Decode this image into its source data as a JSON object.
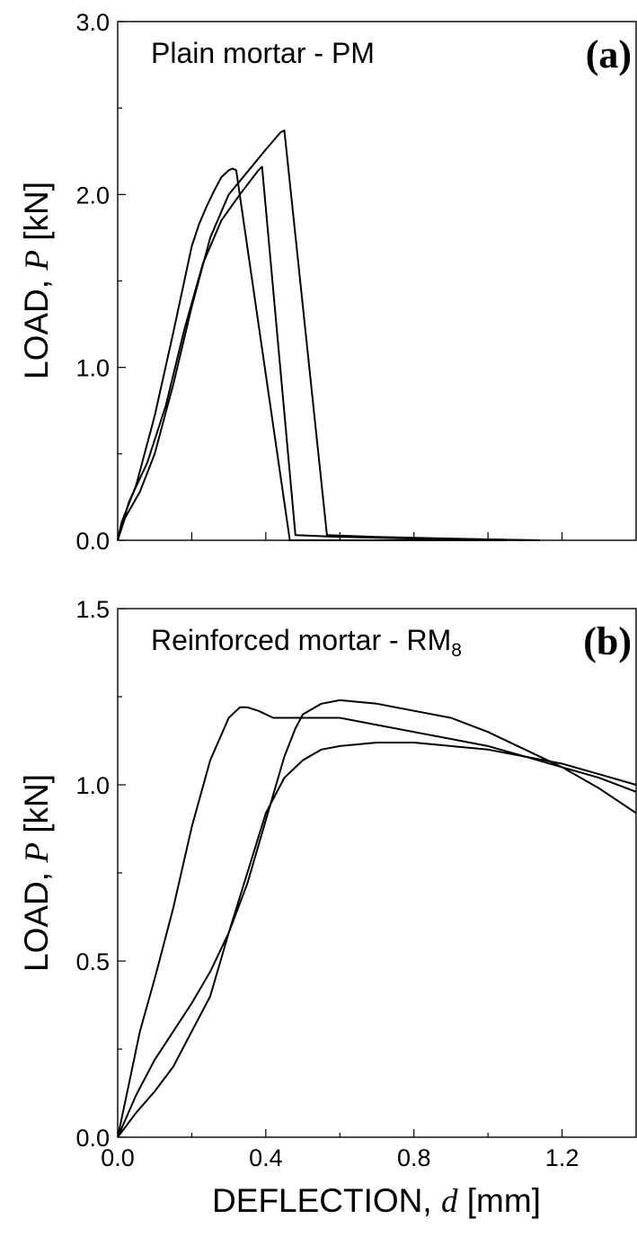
{
  "chart_data": [
    {
      "type": "line",
      "panel_tag": "(a)",
      "label": "Plain mortar - PM",
      "ylabel": "LOAD, P [kN]",
      "ylabel_prefix": "LOAD, ",
      "ylabel_var": "P",
      "ylabel_unit": " [kN]",
      "xlabel": "",
      "xlim": [
        0,
        1.4
      ],
      "ylim": [
        0,
        3.0
      ],
      "yticks": [
        0.0,
        1.0,
        2.0,
        3.0
      ],
      "yticklabels": [
        "0.0",
        "1.0",
        "2.0",
        "3.0"
      ],
      "yminor": [
        0.5,
        1.5,
        2.5
      ],
      "xticks": [
        0.0,
        0.2,
        0.4,
        0.6,
        0.8,
        1.0,
        1.2
      ],
      "grid": false,
      "series": [
        {
          "x": [
            0,
            0.01,
            0.05,
            0.1,
            0.15,
            0.2,
            0.22,
            0.24,
            0.26,
            0.28,
            0.3,
            0.31,
            0.32,
            0.465,
            0.6,
            0.8,
            1.05
          ],
          "y": [
            0,
            0.1,
            0.32,
            0.72,
            1.2,
            1.7,
            1.83,
            1.93,
            2.02,
            2.1,
            2.14,
            2.15,
            2.14,
            0.0,
            0.0,
            0.0,
            0.0
          ]
        },
        {
          "x": [
            0,
            0.03,
            0.08,
            0.13,
            0.18,
            0.23,
            0.28,
            0.33,
            0.38,
            0.39,
            0.48,
            0.6,
            0.8,
            1.0,
            1.14
          ],
          "y": [
            0,
            0.22,
            0.45,
            0.78,
            1.22,
            1.6,
            1.85,
            2.0,
            2.14,
            2.16,
            0.03,
            0.02,
            0.01,
            0.005,
            0.0
          ]
        },
        {
          "x": [
            0,
            0.02,
            0.06,
            0.1,
            0.15,
            0.2,
            0.25,
            0.3,
            0.35,
            0.4,
            0.44,
            0.45,
            0.565,
            0.7,
            0.9,
            1.1
          ],
          "y": [
            0,
            0.13,
            0.28,
            0.5,
            0.9,
            1.35,
            1.75,
            2.0,
            2.13,
            2.26,
            2.36,
            2.37,
            0.03,
            0.02,
            0.01,
            0.0
          ]
        }
      ]
    },
    {
      "type": "line",
      "panel_tag": "(b)",
      "label": "Reinforced mortar - RM",
      "label_sub": "8",
      "ylabel": "LOAD, P [kN]",
      "ylabel_prefix": "LOAD, ",
      "ylabel_var": "P",
      "ylabel_unit": " [kN]",
      "xlabel": "DEFLECTION, d [mm]",
      "xlabel_prefix": "DEFLECTION, ",
      "xlabel_var": "d",
      "xlabel_unit": " [mm]",
      "xlim": [
        0,
        1.4
      ],
      "ylim": [
        0,
        1.5
      ],
      "yticks": [
        0.0,
        0.5,
        1.0,
        1.5
      ],
      "yticklabels": [
        "0.0",
        "0.5",
        "1.0",
        "1.5"
      ],
      "yminor": [
        0.25,
        0.75,
        1.25
      ],
      "xticks": [
        0.0,
        0.4,
        0.8,
        1.2
      ],
      "xticklabels": [
        "0.0",
        "0.4",
        "0.8",
        "1.2"
      ],
      "xminor": [
        0.2,
        0.6,
        1.0
      ],
      "grid": false,
      "series": [
        {
          "x": [
            0,
            0.03,
            0.06,
            0.1,
            0.15,
            0.2,
            0.25,
            0.3,
            0.33,
            0.35,
            0.38,
            0.42,
            0.5,
            0.6,
            0.7,
            0.8,
            0.9,
            1.0,
            1.1,
            1.2,
            1.3,
            1.4
          ],
          "y": [
            0,
            0.15,
            0.3,
            0.45,
            0.65,
            0.88,
            1.07,
            1.19,
            1.22,
            1.22,
            1.21,
            1.19,
            1.19,
            1.19,
            1.17,
            1.15,
            1.13,
            1.11,
            1.08,
            1.05,
            1.02,
            0.98
          ]
        },
        {
          "x": [
            0,
            0.05,
            0.1,
            0.15,
            0.2,
            0.25,
            0.3,
            0.35,
            0.4,
            0.45,
            0.48,
            0.5,
            0.55,
            0.6,
            0.7,
            0.8,
            0.9,
            1.0,
            1.1,
            1.2,
            1.3,
            1.4
          ],
          "y": [
            0,
            0.12,
            0.22,
            0.3,
            0.38,
            0.47,
            0.58,
            0.72,
            0.9,
            1.08,
            1.16,
            1.2,
            1.23,
            1.24,
            1.23,
            1.21,
            1.19,
            1.15,
            1.1,
            1.05,
            0.99,
            0.92
          ]
        },
        {
          "x": [
            0,
            0.05,
            0.1,
            0.15,
            0.2,
            0.25,
            0.3,
            0.35,
            0.4,
            0.45,
            0.5,
            0.55,
            0.6,
            0.7,
            0.8,
            0.9,
            1.0,
            1.1,
            1.2,
            1.3,
            1.4
          ],
          "y": [
            0,
            0.07,
            0.13,
            0.2,
            0.3,
            0.4,
            0.58,
            0.75,
            0.92,
            1.02,
            1.07,
            1.1,
            1.11,
            1.12,
            1.12,
            1.11,
            1.1,
            1.08,
            1.06,
            1.03,
            1.0
          ]
        }
      ]
    }
  ]
}
